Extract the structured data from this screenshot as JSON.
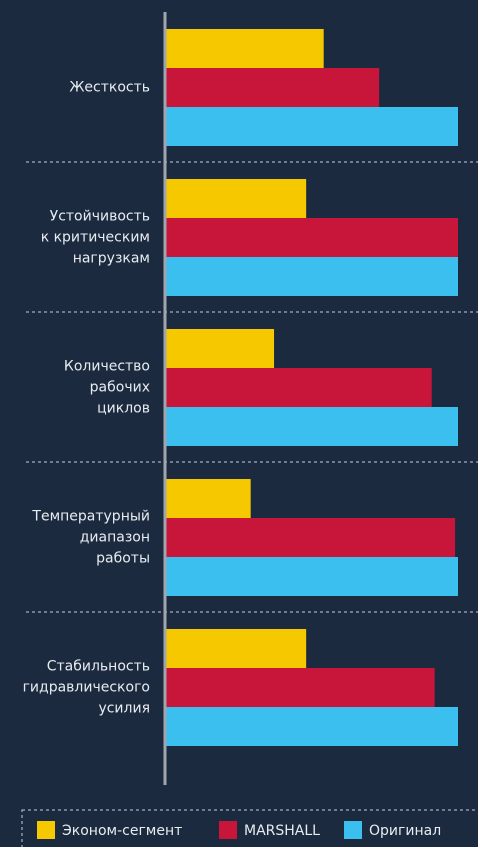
{
  "chart_data": {
    "type": "hbar",
    "categories": [
      "Жесткость",
      "Устойчивость\nк критическим\nнагрузкам",
      "Количество\nрабочих\nциклов",
      "Температурный\nдиапазон\nработы",
      "Стабильность\nгидравлического\nусилия"
    ],
    "series": [
      {
        "name": "Эконом-сегмент",
        "color": "#f5c800",
        "values": [
          54,
          48,
          37,
          29,
          48
        ]
      },
      {
        "name": "MARSHALL",
        "color": "#c8153a",
        "values": [
          73,
          100,
          91,
          99,
          92
        ]
      },
      {
        "name": "Оригинал",
        "color": "#3bbfef",
        "values": [
          100,
          100,
          100,
          100,
          100
        ]
      }
    ],
    "xlim": [
      0,
      100
    ]
  }
}
